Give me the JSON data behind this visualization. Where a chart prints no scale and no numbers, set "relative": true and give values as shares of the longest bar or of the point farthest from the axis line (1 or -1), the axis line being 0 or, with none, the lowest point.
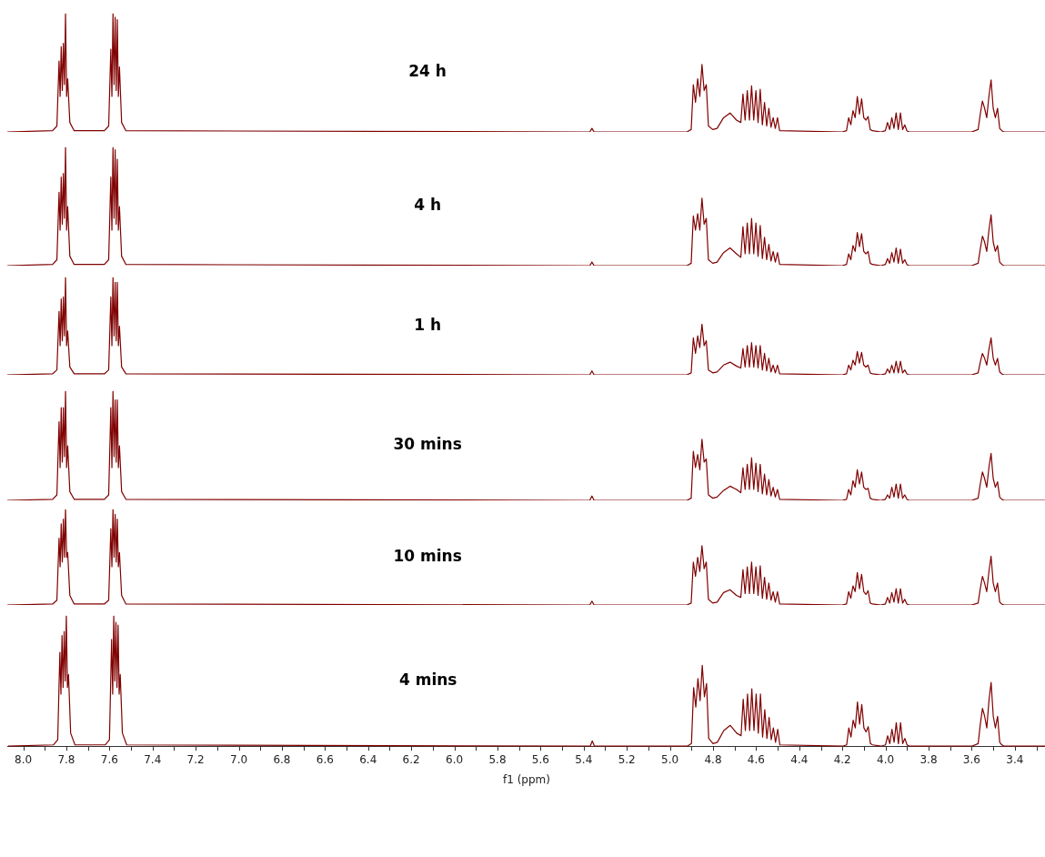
{
  "chart_data": [
    {
      "type": "line",
      "title": "24 h",
      "relative": true,
      "color": "#800000",
      "tick_labels": false,
      "xlim": [
        8.07,
        3.26
      ],
      "x": [
        8.07,
        7.86,
        7.84,
        7.83,
        7.825,
        7.82,
        7.815,
        7.81,
        7.805,
        7.8,
        7.795,
        7.79,
        7.78,
        7.76,
        7.62,
        7.6,
        7.59,
        7.585,
        7.58,
        7.575,
        7.57,
        7.565,
        7.56,
        7.555,
        7.55,
        7.54,
        7.52,
        5.4,
        5.37,
        5.36,
        5.35,
        5.32,
        4.92,
        4.9,
        4.89,
        4.88,
        4.87,
        4.86,
        4.85,
        4.84,
        4.83,
        4.82,
        4.8,
        4.78,
        4.75,
        4.72,
        4.69,
        4.67,
        4.66,
        4.65,
        4.64,
        4.63,
        4.62,
        4.61,
        4.6,
        4.59,
        4.58,
        4.57,
        4.56,
        4.55,
        4.54,
        4.53,
        4.52,
        4.51,
        4.5,
        4.49,
        4.2,
        4.18,
        4.17,
        4.16,
        4.15,
        4.14,
        4.13,
        4.12,
        4.11,
        4.1,
        4.09,
        4.08,
        4.07,
        4.06,
        4.02,
        4.0,
        3.99,
        3.98,
        3.97,
        3.96,
        3.95,
        3.94,
        3.93,
        3.92,
        3.91,
        3.9,
        3.89,
        3.87,
        3.6,
        3.57,
        3.56,
        3.55,
        3.54,
        3.53,
        3.52,
        3.51,
        3.5,
        3.49,
        3.48,
        3.47,
        3.46,
        3.45,
        3.43,
        3.26
      ],
      "values": [
        0,
        0.01,
        0.05,
        0.6,
        0.3,
        0.72,
        0.35,
        0.75,
        0.4,
        1,
        0.3,
        0.45,
        0.08,
        0.01,
        0.01,
        0.05,
        0.7,
        0.3,
        1,
        0.4,
        0.97,
        0.35,
        0.95,
        0.3,
        0.55,
        0.08,
        0.01,
        0,
        0,
        0.03,
        0,
        0,
        0,
        0.02,
        0.4,
        0.25,
        0.45,
        0.3,
        0.57,
        0.35,
        0.4,
        0.05,
        0.02,
        0.03,
        0.12,
        0.16,
        0.1,
        0.08,
        0.32,
        0.1,
        0.35,
        0.1,
        0.39,
        0.1,
        0.35,
        0.08,
        0.36,
        0.06,
        0.25,
        0.05,
        0.2,
        0.04,
        0.12,
        0.03,
        0.12,
        0.01,
        0,
        0.01,
        0.12,
        0.06,
        0.18,
        0.12,
        0.3,
        0.15,
        0.28,
        0.12,
        0.1,
        0.13,
        0.02,
        0.01,
        0,
        0.01,
        0.08,
        0.02,
        0.12,
        0.03,
        0.16,
        0.02,
        0.16,
        0.02,
        0.06,
        0.01,
        0,
        0,
        0,
        0.02,
        0.15,
        0.26,
        0.2,
        0.12,
        0.3,
        0.44,
        0.2,
        0.12,
        0.2,
        0.03,
        0.01,
        0,
        0,
        0
      ]
    },
    {
      "type": "line",
      "title": "4 h",
      "relative": true,
      "color": "#800000",
      "tick_labels": false,
      "xlim": [
        8.07,
        3.26
      ],
      "x": [
        8.07,
        7.86,
        7.84,
        7.83,
        7.825,
        7.82,
        7.815,
        7.81,
        7.805,
        7.8,
        7.795,
        7.79,
        7.78,
        7.76,
        7.62,
        7.6,
        7.59,
        7.585,
        7.58,
        7.575,
        7.57,
        7.565,
        7.56,
        7.555,
        7.55,
        7.54,
        7.52,
        5.4,
        5.37,
        5.36,
        5.35,
        5.32,
        4.92,
        4.9,
        4.89,
        4.88,
        4.87,
        4.86,
        4.85,
        4.84,
        4.83,
        4.82,
        4.8,
        4.78,
        4.75,
        4.72,
        4.69,
        4.67,
        4.66,
        4.65,
        4.64,
        4.63,
        4.62,
        4.61,
        4.6,
        4.59,
        4.58,
        4.57,
        4.56,
        4.55,
        4.54,
        4.53,
        4.52,
        4.51,
        4.5,
        4.49,
        4.2,
        4.18,
        4.17,
        4.16,
        4.15,
        4.14,
        4.13,
        4.12,
        4.11,
        4.1,
        4.09,
        4.08,
        4.07,
        4.06,
        4.02,
        4.0,
        3.99,
        3.98,
        3.97,
        3.96,
        3.95,
        3.94,
        3.93,
        3.92,
        3.91,
        3.9,
        3.89,
        3.87,
        3.6,
        3.57,
        3.56,
        3.55,
        3.54,
        3.53,
        3.52,
        3.51,
        3.5,
        3.49,
        3.48,
        3.47,
        3.46,
        3.45,
        3.43,
        3.26
      ],
      "values": [
        0,
        0.01,
        0.05,
        0.62,
        0.3,
        0.75,
        0.35,
        0.78,
        0.4,
        1,
        0.3,
        0.5,
        0.08,
        0.01,
        0.01,
        0.05,
        0.75,
        0.3,
        1,
        0.4,
        0.98,
        0.35,
        0.9,
        0.3,
        0.5,
        0.08,
        0.01,
        0,
        0,
        0.03,
        0,
        0,
        0,
        0.02,
        0.42,
        0.3,
        0.44,
        0.3,
        0.57,
        0.35,
        0.4,
        0.05,
        0.02,
        0.03,
        0.11,
        0.15,
        0.1,
        0.07,
        0.33,
        0.1,
        0.36,
        0.1,
        0.4,
        0.1,
        0.36,
        0.08,
        0.34,
        0.06,
        0.24,
        0.05,
        0.18,
        0.04,
        0.12,
        0.03,
        0.11,
        0.01,
        0,
        0.01,
        0.1,
        0.05,
        0.17,
        0.12,
        0.28,
        0.16,
        0.27,
        0.12,
        0.1,
        0.12,
        0.02,
        0.01,
        0,
        0.01,
        0.06,
        0.02,
        0.11,
        0.03,
        0.15,
        0.02,
        0.14,
        0.02,
        0.05,
        0.01,
        0,
        0,
        0,
        0.02,
        0.14,
        0.25,
        0.2,
        0.12,
        0.3,
        0.43,
        0.2,
        0.12,
        0.17,
        0.03,
        0.01,
        0,
        0,
        0
      ]
    },
    {
      "type": "line",
      "title": "1 h",
      "relative": true,
      "color": "#800000",
      "tick_labels": false,
      "xlim": [
        8.07,
        3.26
      ],
      "x": [
        8.07,
        7.86,
        7.84,
        7.83,
        7.825,
        7.82,
        7.815,
        7.81,
        7.805,
        7.8,
        7.795,
        7.79,
        7.78,
        7.76,
        7.62,
        7.6,
        7.59,
        7.585,
        7.58,
        7.575,
        7.57,
        7.565,
        7.56,
        7.555,
        7.55,
        7.54,
        7.52,
        5.4,
        5.37,
        5.36,
        5.35,
        5.32,
        4.92,
        4.9,
        4.89,
        4.88,
        4.87,
        4.86,
        4.85,
        4.84,
        4.83,
        4.82,
        4.8,
        4.78,
        4.75,
        4.72,
        4.69,
        4.67,
        4.66,
        4.65,
        4.64,
        4.63,
        4.62,
        4.61,
        4.6,
        4.59,
        4.58,
        4.57,
        4.56,
        4.55,
        4.54,
        4.53,
        4.52,
        4.51,
        4.5,
        4.49,
        4.2,
        4.18,
        4.17,
        4.16,
        4.15,
        4.14,
        4.13,
        4.12,
        4.11,
        4.1,
        4.09,
        4.08,
        4.07,
        4.06,
        4.02,
        4.0,
        3.99,
        3.98,
        3.97,
        3.96,
        3.95,
        3.94,
        3.93,
        3.92,
        3.91,
        3.9,
        3.89,
        3.87,
        3.6,
        3.57,
        3.56,
        3.55,
        3.54,
        3.53,
        3.52,
        3.51,
        3.5,
        3.49,
        3.48,
        3.47,
        3.46,
        3.45,
        3.43,
        3.26
      ],
      "values": [
        0,
        0.01,
        0.05,
        0.65,
        0.3,
        0.78,
        0.35,
        0.8,
        0.4,
        1,
        0.3,
        0.45,
        0.08,
        0.01,
        0.01,
        0.05,
        0.8,
        0.3,
        1,
        0.4,
        0.95,
        0.35,
        0.95,
        0.3,
        0.5,
        0.08,
        0.01,
        0,
        0,
        0.04,
        0,
        0,
        0,
        0.02,
        0.38,
        0.22,
        0.4,
        0.28,
        0.52,
        0.3,
        0.35,
        0.05,
        0.02,
        0.03,
        0.1,
        0.13,
        0.09,
        0.07,
        0.27,
        0.08,
        0.3,
        0.08,
        0.33,
        0.08,
        0.3,
        0.07,
        0.3,
        0.05,
        0.22,
        0.04,
        0.17,
        0.03,
        0.1,
        0.02,
        0.1,
        0.01,
        0,
        0.01,
        0.1,
        0.05,
        0.15,
        0.1,
        0.24,
        0.12,
        0.23,
        0.1,
        0.08,
        0.1,
        0.02,
        0.01,
        0,
        0.01,
        0.06,
        0.02,
        0.1,
        0.02,
        0.14,
        0.02,
        0.14,
        0.02,
        0.05,
        0.01,
        0,
        0,
        0,
        0.02,
        0.13,
        0.22,
        0.17,
        0.1,
        0.26,
        0.38,
        0.17,
        0.1,
        0.17,
        0.03,
        0.01,
        0,
        0,
        0
      ]
    },
    {
      "type": "line",
      "title": "30 mins",
      "relative": true,
      "color": "#800000",
      "tick_labels": false,
      "xlim": [
        8.07,
        3.26
      ],
      "x": [
        8.07,
        7.86,
        7.84,
        7.83,
        7.825,
        7.82,
        7.815,
        7.81,
        7.805,
        7.8,
        7.795,
        7.79,
        7.78,
        7.76,
        7.62,
        7.6,
        7.59,
        7.585,
        7.58,
        7.575,
        7.57,
        7.565,
        7.56,
        7.555,
        7.55,
        7.54,
        7.52,
        5.4,
        5.37,
        5.36,
        5.35,
        5.32,
        4.92,
        4.9,
        4.89,
        4.88,
        4.87,
        4.86,
        4.85,
        4.84,
        4.83,
        4.82,
        4.8,
        4.78,
        4.75,
        4.72,
        4.69,
        4.67,
        4.66,
        4.65,
        4.64,
        4.63,
        4.62,
        4.61,
        4.6,
        4.59,
        4.58,
        4.57,
        4.56,
        4.55,
        4.54,
        4.53,
        4.52,
        4.51,
        4.5,
        4.49,
        4.2,
        4.18,
        4.17,
        4.16,
        4.15,
        4.14,
        4.13,
        4.12,
        4.11,
        4.1,
        4.09,
        4.08,
        4.07,
        4.06,
        4.02,
        4.0,
        3.99,
        3.98,
        3.97,
        3.96,
        3.95,
        3.94,
        3.93,
        3.92,
        3.91,
        3.9,
        3.89,
        3.87,
        3.6,
        3.57,
        3.56,
        3.55,
        3.54,
        3.53,
        3.52,
        3.51,
        3.5,
        3.49,
        3.48,
        3.47,
        3.46,
        3.45,
        3.43,
        3.26
      ],
      "values": [
        0,
        0.01,
        0.05,
        0.72,
        0.3,
        0.85,
        0.35,
        0.85,
        0.4,
        1,
        0.3,
        0.5,
        0.08,
        0.01,
        0.01,
        0.05,
        0.85,
        0.3,
        1,
        0.4,
        0.92,
        0.35,
        0.92,
        0.3,
        0.5,
        0.08,
        0.01,
        0,
        0,
        0.04,
        0,
        0,
        0,
        0.02,
        0.45,
        0.3,
        0.42,
        0.28,
        0.56,
        0.35,
        0.38,
        0.05,
        0.02,
        0.03,
        0.09,
        0.13,
        0.1,
        0.07,
        0.3,
        0.1,
        0.33,
        0.1,
        0.39,
        0.1,
        0.34,
        0.08,
        0.33,
        0.06,
        0.24,
        0.05,
        0.19,
        0.04,
        0.12,
        0.03,
        0.1,
        0.01,
        0,
        0.01,
        0.1,
        0.05,
        0.18,
        0.12,
        0.28,
        0.15,
        0.26,
        0.12,
        0.1,
        0.11,
        0.02,
        0.01,
        0,
        0.01,
        0.05,
        0.02,
        0.12,
        0.03,
        0.15,
        0.02,
        0.15,
        0.02,
        0.05,
        0.01,
        0,
        0,
        0,
        0.02,
        0.15,
        0.26,
        0.2,
        0.12,
        0.3,
        0.43,
        0.2,
        0.12,
        0.17,
        0.03,
        0.01,
        0,
        0,
        0
      ]
    },
    {
      "type": "line",
      "title": "10 mins",
      "relative": true,
      "color": "#800000",
      "tick_labels": false,
      "xlim": [
        8.07,
        3.26
      ],
      "x": [
        8.07,
        7.86,
        7.84,
        7.83,
        7.825,
        7.82,
        7.815,
        7.81,
        7.805,
        7.8,
        7.795,
        7.79,
        7.78,
        7.76,
        7.62,
        7.6,
        7.59,
        7.585,
        7.58,
        7.575,
        7.57,
        7.565,
        7.56,
        7.555,
        7.55,
        7.54,
        7.52,
        5.4,
        5.37,
        5.36,
        5.35,
        5.32,
        4.92,
        4.9,
        4.89,
        4.88,
        4.87,
        4.86,
        4.85,
        4.84,
        4.83,
        4.82,
        4.8,
        4.78,
        4.75,
        4.72,
        4.69,
        4.67,
        4.66,
        4.65,
        4.64,
        4.63,
        4.62,
        4.61,
        4.6,
        4.59,
        4.58,
        4.57,
        4.56,
        4.55,
        4.54,
        4.53,
        4.52,
        4.51,
        4.5,
        4.49,
        4.2,
        4.18,
        4.17,
        4.16,
        4.15,
        4.14,
        4.13,
        4.12,
        4.11,
        4.1,
        4.09,
        4.08,
        4.07,
        4.06,
        4.02,
        4.0,
        3.99,
        3.98,
        3.97,
        3.96,
        3.95,
        3.94,
        3.93,
        3.92,
        3.91,
        3.9,
        3.89,
        3.87,
        3.6,
        3.57,
        3.56,
        3.55,
        3.54,
        3.53,
        3.52,
        3.51,
        3.5,
        3.49,
        3.48,
        3.47,
        3.46,
        3.45,
        3.43,
        3.26
      ],
      "values": [
        0,
        0.01,
        0.05,
        0.7,
        0.4,
        0.85,
        0.45,
        0.9,
        0.5,
        1,
        0.5,
        0.55,
        0.1,
        0.01,
        0.01,
        0.05,
        0.8,
        0.4,
        1,
        0.5,
        0.95,
        0.45,
        0.9,
        0.4,
        0.55,
        0.1,
        0.01,
        0,
        0,
        0.04,
        0,
        0,
        0,
        0.02,
        0.45,
        0.3,
        0.5,
        0.35,
        0.62,
        0.38,
        0.45,
        0.06,
        0.02,
        0.03,
        0.13,
        0.16,
        0.1,
        0.08,
        0.37,
        0.12,
        0.4,
        0.12,
        0.45,
        0.12,
        0.4,
        0.1,
        0.41,
        0.07,
        0.29,
        0.06,
        0.23,
        0.05,
        0.14,
        0.03,
        0.14,
        0.01,
        0,
        0.01,
        0.14,
        0.07,
        0.2,
        0.14,
        0.34,
        0.17,
        0.32,
        0.14,
        0.11,
        0.15,
        0.02,
        0.01,
        0,
        0.01,
        0.08,
        0.02,
        0.13,
        0.03,
        0.17,
        0.02,
        0.17,
        0.02,
        0.06,
        0.01,
        0,
        0,
        0,
        0.02,
        0.17,
        0.3,
        0.23,
        0.14,
        0.35,
        0.51,
        0.23,
        0.14,
        0.23,
        0.03,
        0.01,
        0,
        0,
        0
      ]
    },
    {
      "type": "line",
      "title": "4 mins",
      "relative": true,
      "color": "#800000",
      "tick_labels": "x",
      "xlabel": "f1 (ppm)",
      "xlim": [
        8.07,
        3.26
      ],
      "xticks": [
        {
          "value": 8,
          "label": "8.0"
        },
        {
          "value": 7.9,
          "label": null
        },
        {
          "value": 7.8,
          "label": "7.8"
        },
        {
          "value": 7.7,
          "label": null
        },
        {
          "value": 7.6,
          "label": "7.6"
        },
        {
          "value": 7.5,
          "label": null
        },
        {
          "value": 7.4,
          "label": "7.4"
        },
        {
          "value": 7.3,
          "label": null
        },
        {
          "value": 7.2,
          "label": "7.2"
        },
        {
          "value": 7.1,
          "label": null
        },
        {
          "value": 7,
          "label": "7.0"
        },
        {
          "value": 6.9,
          "label": null
        },
        {
          "value": 6.8,
          "label": "6.8"
        },
        {
          "value": 6.7,
          "label": null
        },
        {
          "value": 6.6,
          "label": "6.6"
        },
        {
          "value": 6.5,
          "label": null
        },
        {
          "value": 6.4,
          "label": "6.4"
        },
        {
          "value": 6.3,
          "label": null
        },
        {
          "value": 6.2,
          "label": "6.2"
        },
        {
          "value": 6.1,
          "label": null
        },
        {
          "value": 6,
          "label": "6.0"
        },
        {
          "value": 5.9,
          "label": null
        },
        {
          "value": 5.8,
          "label": "5.8"
        },
        {
          "value": 5.7,
          "label": null
        },
        {
          "value": 5.6,
          "label": "5.6"
        },
        {
          "value": 5.5,
          "label": null
        },
        {
          "value": 5.4,
          "label": "5.4"
        },
        {
          "value": 5.3,
          "label": null
        },
        {
          "value": 5.2,
          "label": "5.2"
        },
        {
          "value": 5.1,
          "label": null
        },
        {
          "value": 5,
          "label": "5.0"
        },
        {
          "value": 4.9,
          "label": null
        },
        {
          "value": 4.8,
          "label": "4.8"
        },
        {
          "value": 4.7,
          "label": null
        },
        {
          "value": 4.6,
          "label": "4.6"
        },
        {
          "value": 4.5,
          "label": null
        },
        {
          "value": 4.4,
          "label": "4.4"
        },
        {
          "value": 4.3,
          "label": null
        },
        {
          "value": 4.2,
          "label": "4.2"
        },
        {
          "value": 4.1,
          "label": null
        },
        {
          "value": 4,
          "label": "4.0"
        },
        {
          "value": 3.9,
          "label": null
        },
        {
          "value": 3.8,
          "label": "3.8"
        },
        {
          "value": 3.7,
          "label": null
        },
        {
          "value": 3.6,
          "label": "3.6"
        },
        {
          "value": 3.5,
          "label": null
        },
        {
          "value": 3.4,
          "label": "3.4"
        },
        {
          "value": 3.3,
          "label": null
        }
      ],
      "x": [
        8.07,
        7.86,
        7.84,
        7.83,
        7.825,
        7.82,
        7.815,
        7.81,
        7.805,
        7.8,
        7.795,
        7.79,
        7.78,
        7.76,
        7.62,
        7.6,
        7.59,
        7.585,
        7.58,
        7.575,
        7.57,
        7.565,
        7.56,
        7.555,
        7.55,
        7.54,
        7.52,
        5.4,
        5.37,
        5.36,
        5.35,
        5.32,
        4.92,
        4.9,
        4.89,
        4.88,
        4.87,
        4.86,
        4.85,
        4.84,
        4.83,
        4.82,
        4.8,
        4.78,
        4.75,
        4.72,
        4.69,
        4.67,
        4.66,
        4.65,
        4.64,
        4.63,
        4.62,
        4.61,
        4.6,
        4.59,
        4.58,
        4.57,
        4.56,
        4.55,
        4.54,
        4.53,
        4.52,
        4.51,
        4.5,
        4.49,
        4.2,
        4.18,
        4.17,
        4.16,
        4.15,
        4.14,
        4.13,
        4.12,
        4.11,
        4.1,
        4.09,
        4.08,
        4.07,
        4.06,
        4.02,
        4.0,
        3.99,
        3.98,
        3.97,
        3.96,
        3.95,
        3.94,
        3.93,
        3.92,
        3.91,
        3.9,
        3.89,
        3.87,
        3.6,
        3.57,
        3.56,
        3.55,
        3.54,
        3.53,
        3.52,
        3.51,
        3.5,
        3.49,
        3.48,
        3.47,
        3.46,
        3.45,
        3.43,
        3.26
      ],
      "values": [
        0,
        0.01,
        0.05,
        0.72,
        0.4,
        0.85,
        0.45,
        0.88,
        0.5,
        1,
        0.45,
        0.55,
        0.1,
        0.01,
        0.01,
        0.05,
        0.82,
        0.4,
        1,
        0.5,
        0.95,
        0.45,
        0.93,
        0.4,
        0.55,
        0.1,
        0.01,
        0,
        0,
        0.04,
        0,
        0,
        0,
        0.02,
        0.45,
        0.3,
        0.52,
        0.35,
        0.62,
        0.38,
        0.48,
        0.06,
        0.02,
        0.03,
        0.12,
        0.16,
        0.1,
        0.08,
        0.36,
        0.12,
        0.4,
        0.12,
        0.44,
        0.12,
        0.4,
        0.1,
        0.4,
        0.07,
        0.28,
        0.06,
        0.22,
        0.05,
        0.14,
        0.03,
        0.13,
        0.01,
        0,
        0.01,
        0.14,
        0.07,
        0.2,
        0.14,
        0.34,
        0.17,
        0.32,
        0.14,
        0.11,
        0.15,
        0.02,
        0.01,
        0,
        0.01,
        0.08,
        0.02,
        0.13,
        0.03,
        0.18,
        0.02,
        0.18,
        0.02,
        0.06,
        0.01,
        0,
        0,
        0,
        0.02,
        0.17,
        0.29,
        0.23,
        0.14,
        0.35,
        0.49,
        0.23,
        0.14,
        0.23,
        0.03,
        0.01,
        0,
        0,
        0
      ]
    }
  ]
}
